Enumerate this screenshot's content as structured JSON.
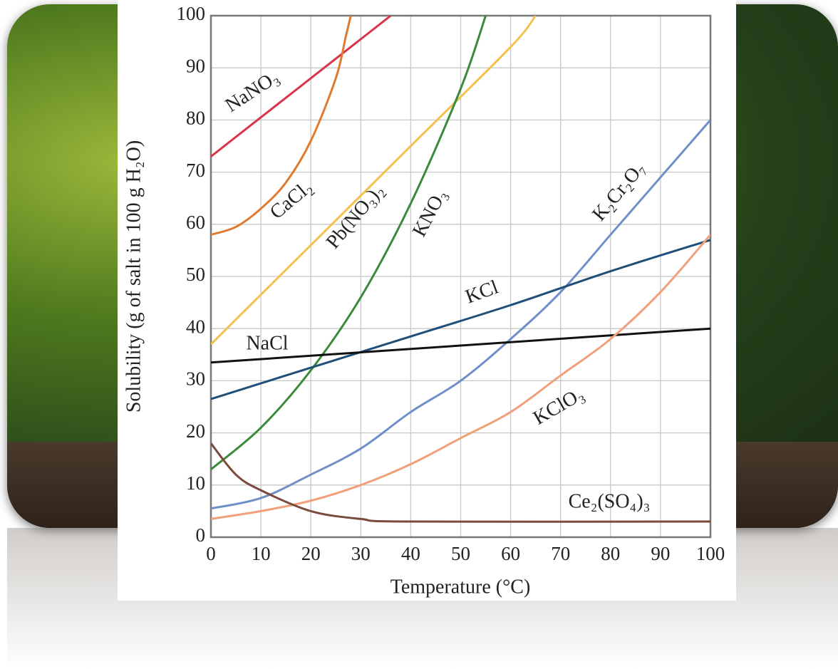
{
  "chart_data": {
    "type": "line",
    "xlabel": "Temperature (°C)",
    "ylabel": "Solubility (g of salt in 100 g H₂O)",
    "xlim": [
      0,
      100
    ],
    "ylim": [
      0,
      100
    ],
    "xticks": [
      0,
      10,
      20,
      30,
      40,
      50,
      60,
      70,
      80,
      90,
      100
    ],
    "yticks": [
      0,
      10,
      20,
      30,
      40,
      50,
      60,
      70,
      80,
      90,
      100
    ],
    "grid": true,
    "series": [
      {
        "name": "NaNO₃",
        "color": "#d8344a",
        "x": [
          0,
          10,
          20,
          30,
          36
        ],
        "values": [
          73,
          80.5,
          88,
          95.5,
          100
        ]
      },
      {
        "name": "CaCl₂",
        "color": "#e07a2e",
        "x": [
          0,
          5,
          10,
          15,
          20,
          25,
          27,
          28
        ],
        "values": [
          58,
          59.5,
          63,
          68,
          76,
          88,
          96,
          100
        ]
      },
      {
        "name": "Pb(NO₃)₂",
        "color": "#f2c14e",
        "x": [
          0,
          20,
          40,
          60,
          65
        ],
        "values": [
          37,
          56,
          75,
          94,
          100
        ]
      },
      {
        "name": "KNO₃",
        "color": "#3a8a3a",
        "x": [
          0,
          10,
          20,
          30,
          40,
          50,
          55
        ],
        "values": [
          13,
          21,
          32,
          46,
          64,
          86,
          100
        ]
      },
      {
        "name": "K₂Cr₂O₇",
        "color": "#6f8fc8",
        "x": [
          0,
          10,
          20,
          30,
          40,
          50,
          60,
          70,
          80,
          90,
          100
        ],
        "values": [
          5.5,
          7.5,
          12,
          17,
          24,
          30,
          38,
          47,
          58,
          69,
          80
        ]
      },
      {
        "name": "KCl",
        "color": "#1f4e79",
        "x": [
          0,
          20,
          40,
          60,
          80,
          100
        ],
        "values": [
          26.5,
          32.5,
          38.5,
          44.5,
          51,
          57
        ]
      },
      {
        "name": "NaCl",
        "color": "#111111",
        "x": [
          0,
          100
        ],
        "values": [
          33.5,
          40
        ]
      },
      {
        "name": "KClO₃",
        "color": "#f0a07a",
        "x": [
          0,
          10,
          20,
          30,
          40,
          50,
          60,
          70,
          80,
          90,
          100
        ],
        "values": [
          3.5,
          5,
          7,
          10,
          14,
          19,
          24,
          31,
          38,
          47,
          58
        ]
      },
      {
        "name": "Ce₂(SO₄)₃",
        "color": "#7a4a3a",
        "x": [
          0,
          5,
          10,
          20,
          30,
          40,
          100
        ],
        "values": [
          18,
          12,
          9,
          5,
          3.5,
          3,
          3
        ]
      }
    ]
  }
}
